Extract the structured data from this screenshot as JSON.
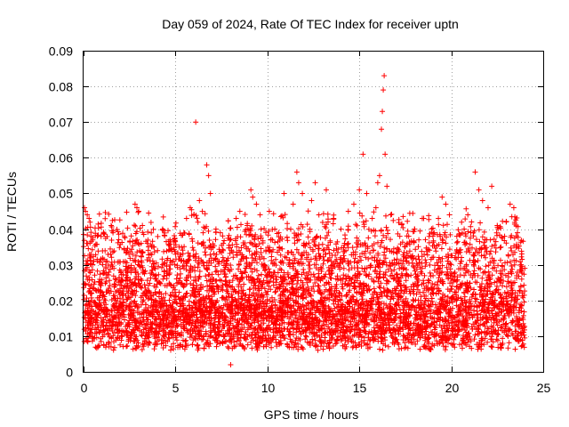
{
  "chart_data": {
    "type": "scatter",
    "title": "Day 059 of 2024, Rate Of TEC Index for receiver uptn",
    "xlabel": "GPS time / hours",
    "ylabel": "ROTI / TECUs",
    "xlim": [
      0,
      25
    ],
    "ylim": [
      0,
      0.09
    ],
    "x_ticks": [
      "0",
      "5",
      "10",
      "15",
      "20",
      "25"
    ],
    "y_ticks": [
      "0",
      "0.01",
      "0.02",
      "0.03",
      "0.04",
      "0.05",
      "0.06",
      "0.07",
      "0.08",
      "0.09"
    ],
    "grid": true,
    "marker": "+",
    "color": "#ff0000",
    "series": [
      {
        "values_note_excluded": true,
        "points": [
          [
            0.05,
            0.046
          ],
          [
            0.1,
            0.045
          ],
          [
            0.2,
            0.044
          ],
          [
            0.3,
            0.043
          ],
          [
            0.4,
            0.038
          ],
          [
            0.5,
            0.037
          ],
          [
            1.5,
            0.041
          ],
          [
            1.6,
            0.039
          ],
          [
            2.8,
            0.047
          ],
          [
            2.9,
            0.046
          ],
          [
            3.0,
            0.045
          ],
          [
            3.2,
            0.041
          ],
          [
            4.3,
            0.04
          ],
          [
            4.7,
            0.037
          ],
          [
            5.2,
            0.035
          ],
          [
            5.6,
            0.043
          ],
          [
            5.8,
            0.046
          ],
          [
            6.0,
            0.044
          ],
          [
            6.1,
            0.07
          ],
          [
            6.3,
            0.048
          ],
          [
            6.5,
            0.039
          ],
          [
            6.7,
            0.058
          ],
          [
            6.8,
            0.055
          ],
          [
            6.9,
            0.05
          ],
          [
            7.2,
            0.04
          ],
          [
            7.6,
            0.036
          ],
          [
            8.0,
            0.002
          ],
          [
            8.3,
            0.043
          ],
          [
            8.5,
            0.045
          ],
          [
            8.9,
            0.041
          ],
          [
            9.1,
            0.051
          ],
          [
            9.2,
            0.049
          ],
          [
            9.4,
            0.047
          ],
          [
            9.6,
            0.044
          ],
          [
            10.1,
            0.045
          ],
          [
            10.4,
            0.04
          ],
          [
            10.9,
            0.05
          ],
          [
            11.4,
            0.047
          ],
          [
            11.6,
            0.056
          ],
          [
            11.7,
            0.053
          ],
          [
            11.9,
            0.05
          ],
          [
            12.4,
            0.048
          ],
          [
            12.6,
            0.053
          ],
          [
            12.8,
            0.044
          ],
          [
            13.2,
            0.051
          ],
          [
            13.6,
            0.043
          ],
          [
            14.0,
            0.04
          ],
          [
            14.4,
            0.045
          ],
          [
            14.7,
            0.047
          ],
          [
            15.0,
            0.051
          ],
          [
            15.2,
            0.061
          ],
          [
            15.4,
            0.05
          ],
          [
            15.7,
            0.043
          ],
          [
            15.9,
            0.046
          ],
          [
            16.0,
            0.053
          ],
          [
            16.1,
            0.055
          ],
          [
            16.2,
            0.068
          ],
          [
            16.25,
            0.073
          ],
          [
            16.3,
            0.079
          ],
          [
            16.35,
            0.083
          ],
          [
            16.4,
            0.061
          ],
          [
            16.5,
            0.052
          ],
          [
            16.7,
            0.044
          ],
          [
            17.2,
            0.038
          ],
          [
            17.6,
            0.036
          ],
          [
            18.0,
            0.04
          ],
          [
            18.5,
            0.043
          ],
          [
            19.0,
            0.038
          ],
          [
            19.3,
            0.043
          ],
          [
            19.5,
            0.049
          ],
          [
            19.7,
            0.047
          ],
          [
            19.9,
            0.044
          ],
          [
            20.3,
            0.038
          ],
          [
            20.7,
            0.04
          ],
          [
            20.9,
            0.044
          ],
          [
            21.1,
            0.042
          ],
          [
            21.3,
            0.056
          ],
          [
            21.5,
            0.051
          ],
          [
            21.7,
            0.048
          ],
          [
            22.0,
            0.046
          ],
          [
            22.2,
            0.052
          ],
          [
            22.5,
            0.041
          ],
          [
            22.9,
            0.038
          ],
          [
            23.2,
            0.047
          ],
          [
            23.4,
            0.046
          ],
          [
            23.6,
            0.039
          ],
          [
            23.8,
            0.03
          ],
          [
            24.0,
            0.029
          ]
        ]
      }
    ]
  }
}
